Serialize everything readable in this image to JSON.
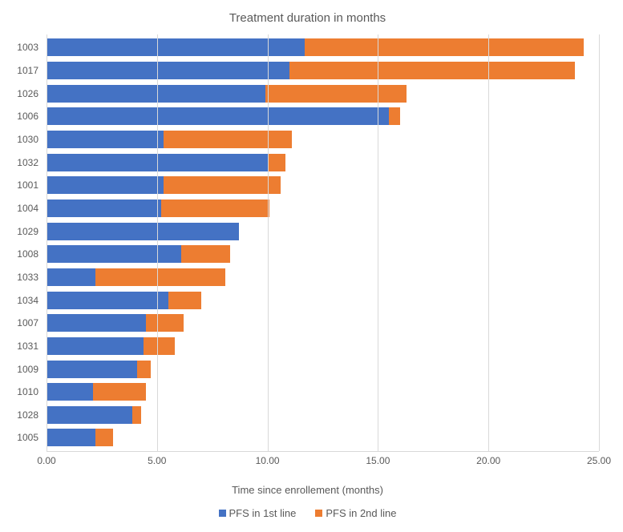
{
  "chart": {
    "type": "stacked-bar-horizontal",
    "title": "Treatment duration in months",
    "x_axis_title": "Time since enrollement (months)",
    "xlim": [
      0,
      25
    ],
    "xtick_step": 5,
    "xtick_labels": [
      "0.00",
      "5.00",
      "10.00",
      "15.00",
      "20.00",
      "25.00"
    ],
    "background_color": "#ffffff",
    "grid_color": "#d9d9d9",
    "title_fontsize": 15,
    "label_fontsize": 12,
    "text_color": "#595959",
    "bar_gap_ratio": 0.25,
    "series": [
      {
        "name": "PFS in 1st line",
        "color": "#4472c4"
      },
      {
        "name": "PFS in 2nd line",
        "color": "#ed7d31"
      }
    ],
    "categories": [
      "1003",
      "1017",
      "1026",
      "1006",
      "1030",
      "1032",
      "1001",
      "1004",
      "1029",
      "1008",
      "1033",
      "1034",
      "1007",
      "1031",
      "1009",
      "1010",
      "1028",
      "1005"
    ],
    "data": [
      {
        "id": "1003",
        "pfs1": 11.7,
        "pfs2": 12.6
      },
      {
        "id": "1017",
        "pfs1": 11.0,
        "pfs2": 12.9
      },
      {
        "id": "1026",
        "pfs1": 9.9,
        "pfs2": 6.4
      },
      {
        "id": "1006",
        "pfs1": 15.5,
        "pfs2": 0.5
      },
      {
        "id": "1030",
        "pfs1": 5.3,
        "pfs2": 5.8
      },
      {
        "id": "1032",
        "pfs1": 10.0,
        "pfs2": 0.8
      },
      {
        "id": "1001",
        "pfs1": 5.3,
        "pfs2": 5.3
      },
      {
        "id": "1004",
        "pfs1": 5.2,
        "pfs2": 4.9
      },
      {
        "id": "1029",
        "pfs1": 8.7,
        "pfs2": 0.0
      },
      {
        "id": "1008",
        "pfs1": 6.1,
        "pfs2": 2.2
      },
      {
        "id": "1033",
        "pfs1": 2.2,
        "pfs2": 5.9
      },
      {
        "id": "1034",
        "pfs1": 5.5,
        "pfs2": 1.5
      },
      {
        "id": "1007",
        "pfs1": 4.5,
        "pfs2": 1.7
      },
      {
        "id": "1031",
        "pfs1": 4.4,
        "pfs2": 1.4
      },
      {
        "id": "1009",
        "pfs1": 4.1,
        "pfs2": 0.6
      },
      {
        "id": "1010",
        "pfs1": 2.1,
        "pfs2": 2.4
      },
      {
        "id": "1028",
        "pfs1": 3.9,
        "pfs2": 0.4
      },
      {
        "id": "1005",
        "pfs1": 2.2,
        "pfs2": 0.8
      }
    ]
  }
}
